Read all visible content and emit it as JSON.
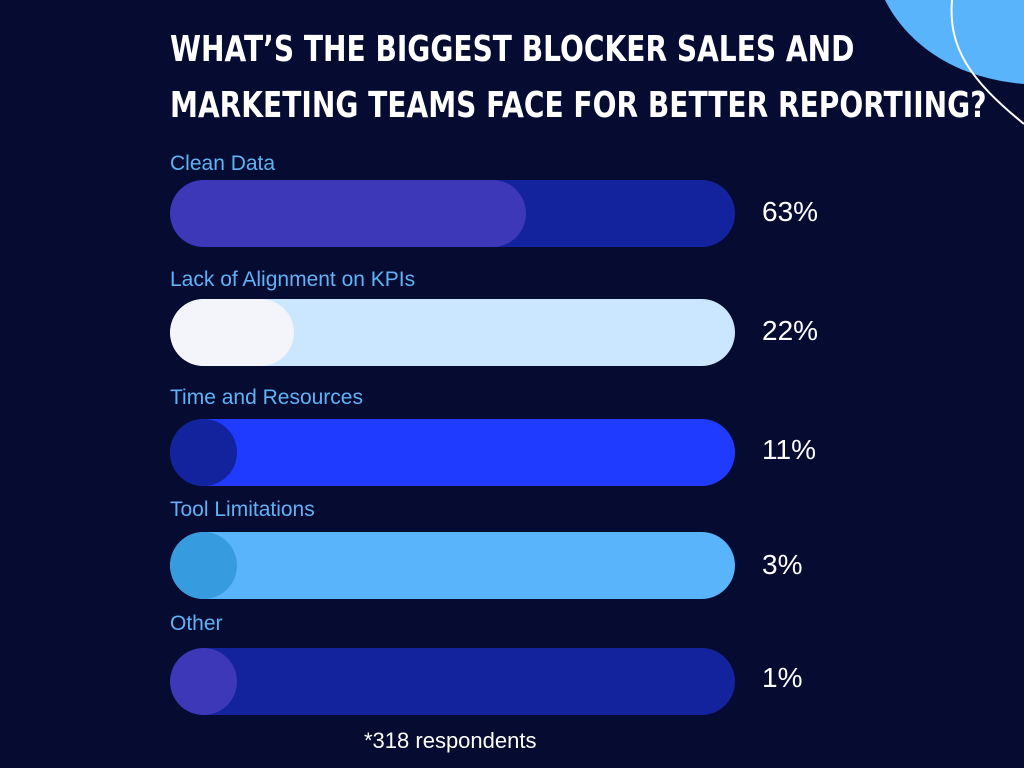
{
  "chart_data": {
    "type": "bar",
    "orientation": "horizontal",
    "title": "What’s the biggest blocker sales and marketing teams face for better reportiing?",
    "title_lines": [
      "What’s the biggest blocker sales and",
      "marketing teams face for better reportiing?"
    ],
    "categories": [
      "Clean Data",
      "Lack of Alignment on KPIs",
      "Time and Resources",
      "Tool Limitations",
      "Other"
    ],
    "values": [
      63,
      22,
      11,
      3,
      1
    ],
    "value_labels": [
      "63%",
      "22%",
      "11%",
      "3%",
      "1%"
    ],
    "ylim": [
      0,
      100
    ],
    "track_colors": [
      "#13239e",
      "#cbe6ff",
      "#1f3bff",
      "#5ab4fb",
      "#13239e"
    ],
    "fill_colors": [
      "#3c38b7",
      "#f3f5fb",
      "#13239e",
      "#379cdf",
      "#3c38b7"
    ],
    "grid": false,
    "legend": "none",
    "footnote": "*318 respondents"
  },
  "colors": {
    "background": "#060b31",
    "label": "#61b2f5",
    "value_text": "#ffffff",
    "accent_blob": "#5ab4fb"
  }
}
